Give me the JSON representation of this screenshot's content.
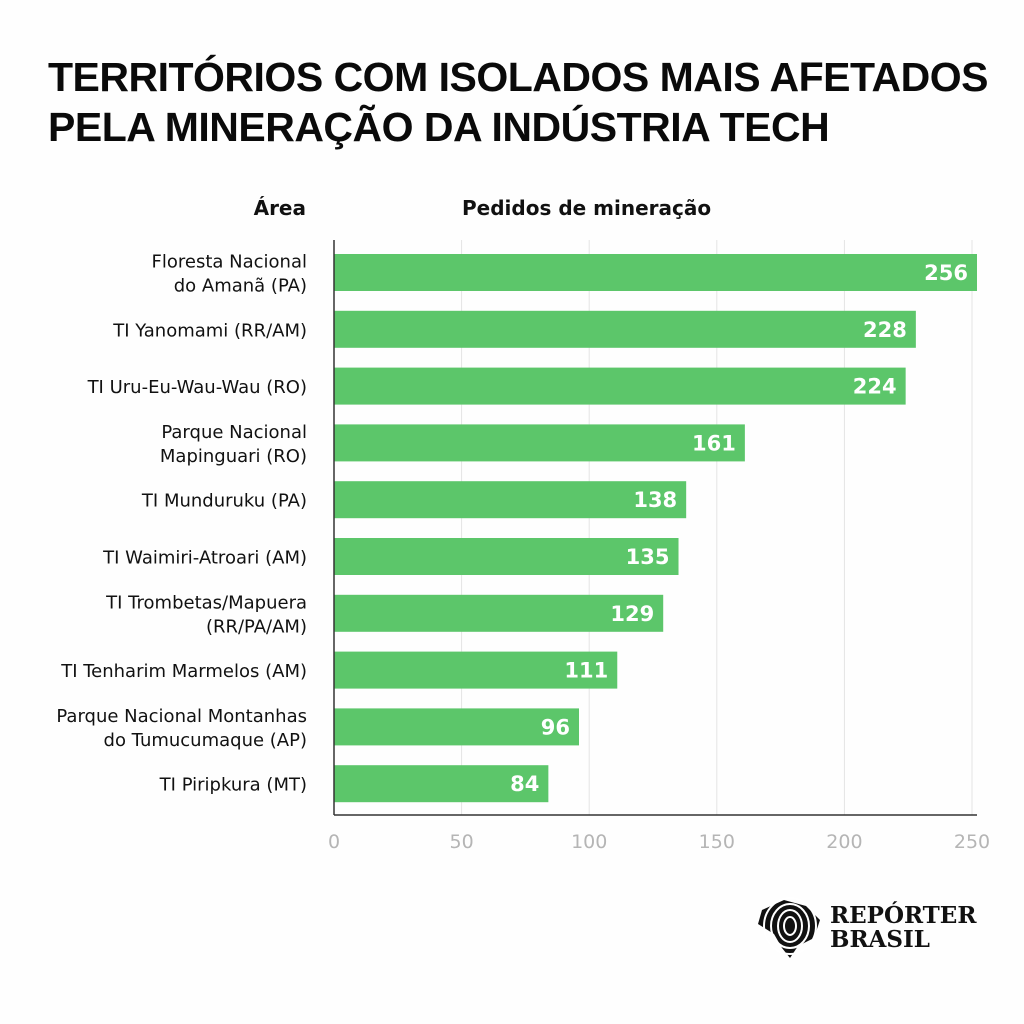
{
  "chart_data": {
    "type": "bar",
    "orientation": "horizontal",
    "title": "TERRITÓRIOS COM ISOLADOS MAIS AFETADOS PELA MINERAÇÃO DA INDÚSTRIA TECH",
    "title_lines": [
      "TERRITÓRIOS COM ISOLADOS MAIS AFETADOS",
      "PELA MINERAÇÃO DA INDÚSTRIA TECH"
    ],
    "ylabel": "Área",
    "xlabel": "Pedidos de mineração",
    "categories": [
      [
        "Floresta Nacional",
        "do Amanã (PA)"
      ],
      [
        "TI Yanomami (RR/AM)"
      ],
      [
        "TI Uru-Eu-Wau-Wau (RO)"
      ],
      [
        "Parque Nacional",
        "Mapinguari (RO)"
      ],
      [
        "TI Munduruku (PA)"
      ],
      [
        "TI Waimiri-Atroari (AM)"
      ],
      [
        "TI Trombetas/Mapuera",
        "(RR/PA/AM)"
      ],
      [
        "TI Tenharim Marmelos (AM)"
      ],
      [
        "Parque Nacional Montanhas",
        "do Tumucumaque (AP)"
      ],
      [
        "TI Piripkura (MT)"
      ]
    ],
    "values": [
      256,
      228,
      224,
      161,
      138,
      135,
      129,
      111,
      96,
      84
    ],
    "xticks": [
      0,
      50,
      100,
      150,
      200,
      250
    ],
    "xlim": [
      0,
      255
    ],
    "grid": "vertical",
    "bar_color": "#5cc66a",
    "label_color": "#ffffff",
    "tick_color": "#b5b5b5"
  },
  "logo": {
    "line1": "REPÓRTER",
    "line2": "BRASIL"
  }
}
